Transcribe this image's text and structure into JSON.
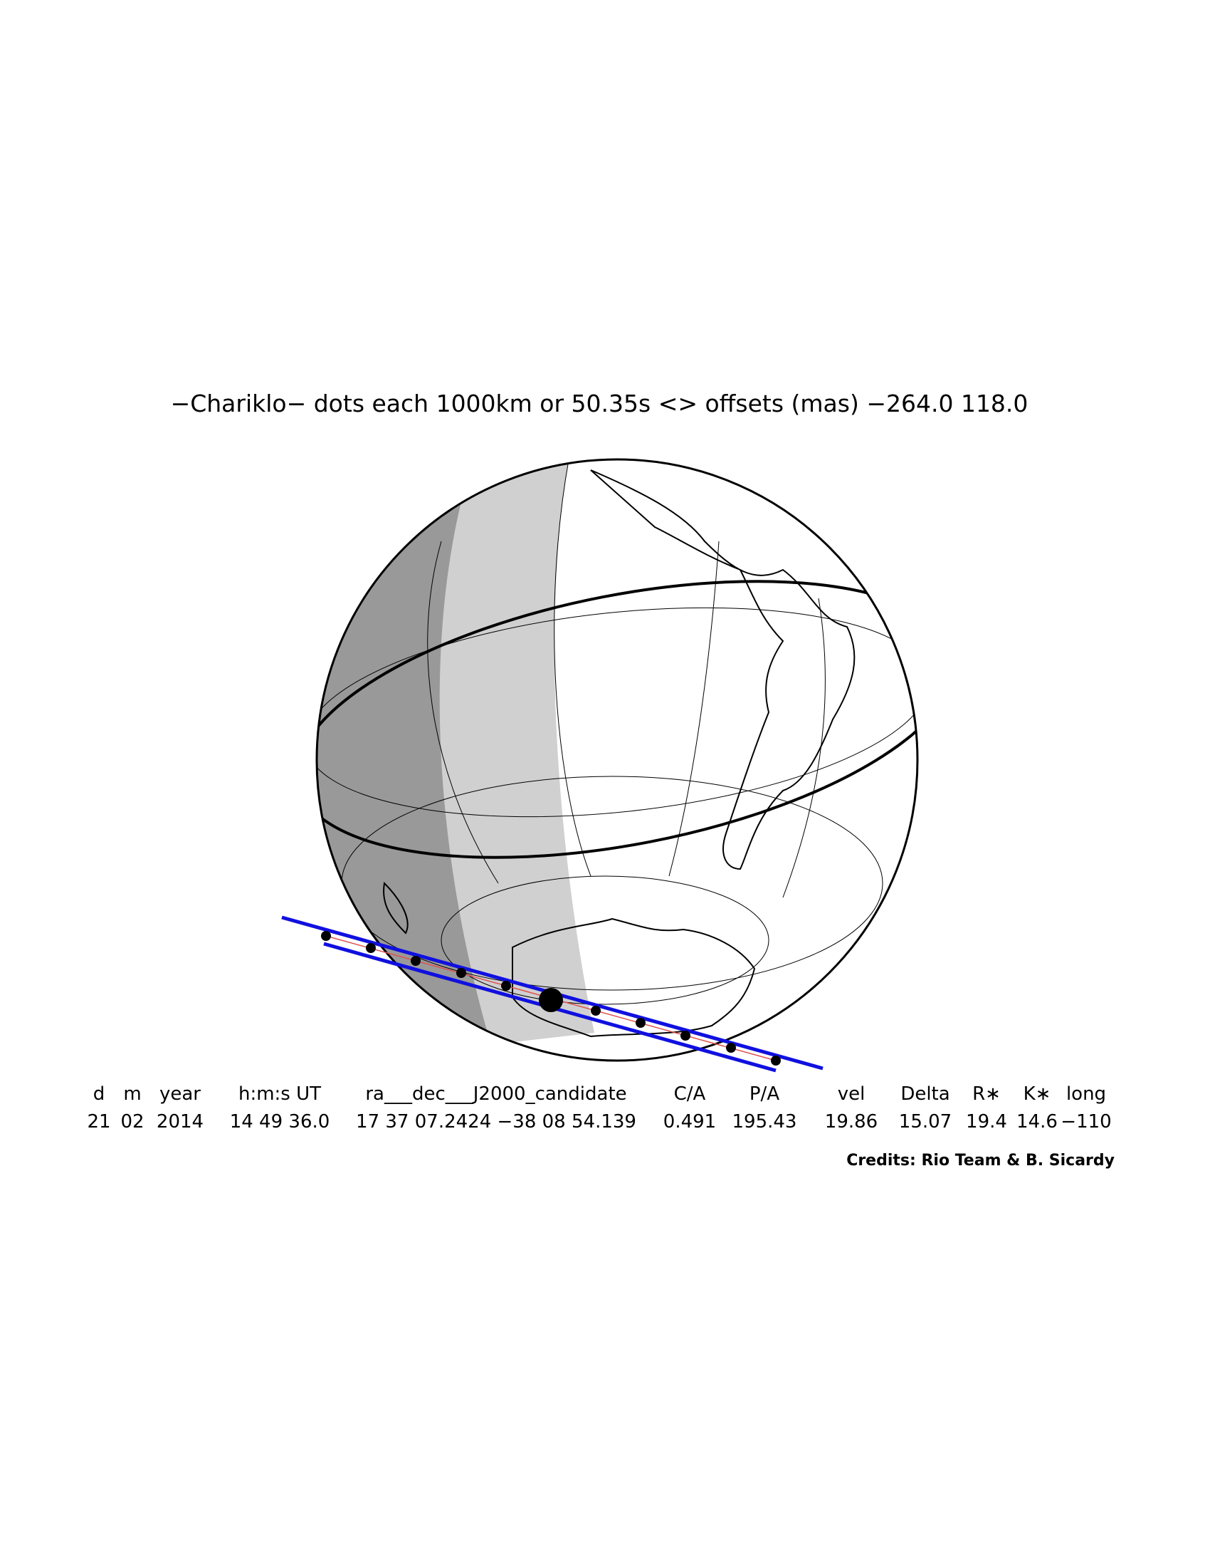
{
  "title": "−Chariklo− dots each 1000km or 50.35s <> offsets (mas) −264.0  118.0",
  "table": {
    "header": [
      "d",
      "m",
      "year",
      "h:m:s UT",
      "ra___dec___J2000_candidate",
      "C/A",
      "P/A",
      "vel",
      "Delta",
      "R∗",
      "K∗",
      "long"
    ],
    "rows": [
      [
        "21",
        "02",
        "2014",
        "14 49 36.0",
        "17 37 07.2424 −38 08 54.139",
        "0.491",
        "195.43",
        "19.86",
        "15.07",
        "19.4",
        "14.6",
        "−110"
      ]
    ]
  },
  "credits": "Credits: Rio Team & B. Sicardy"
}
